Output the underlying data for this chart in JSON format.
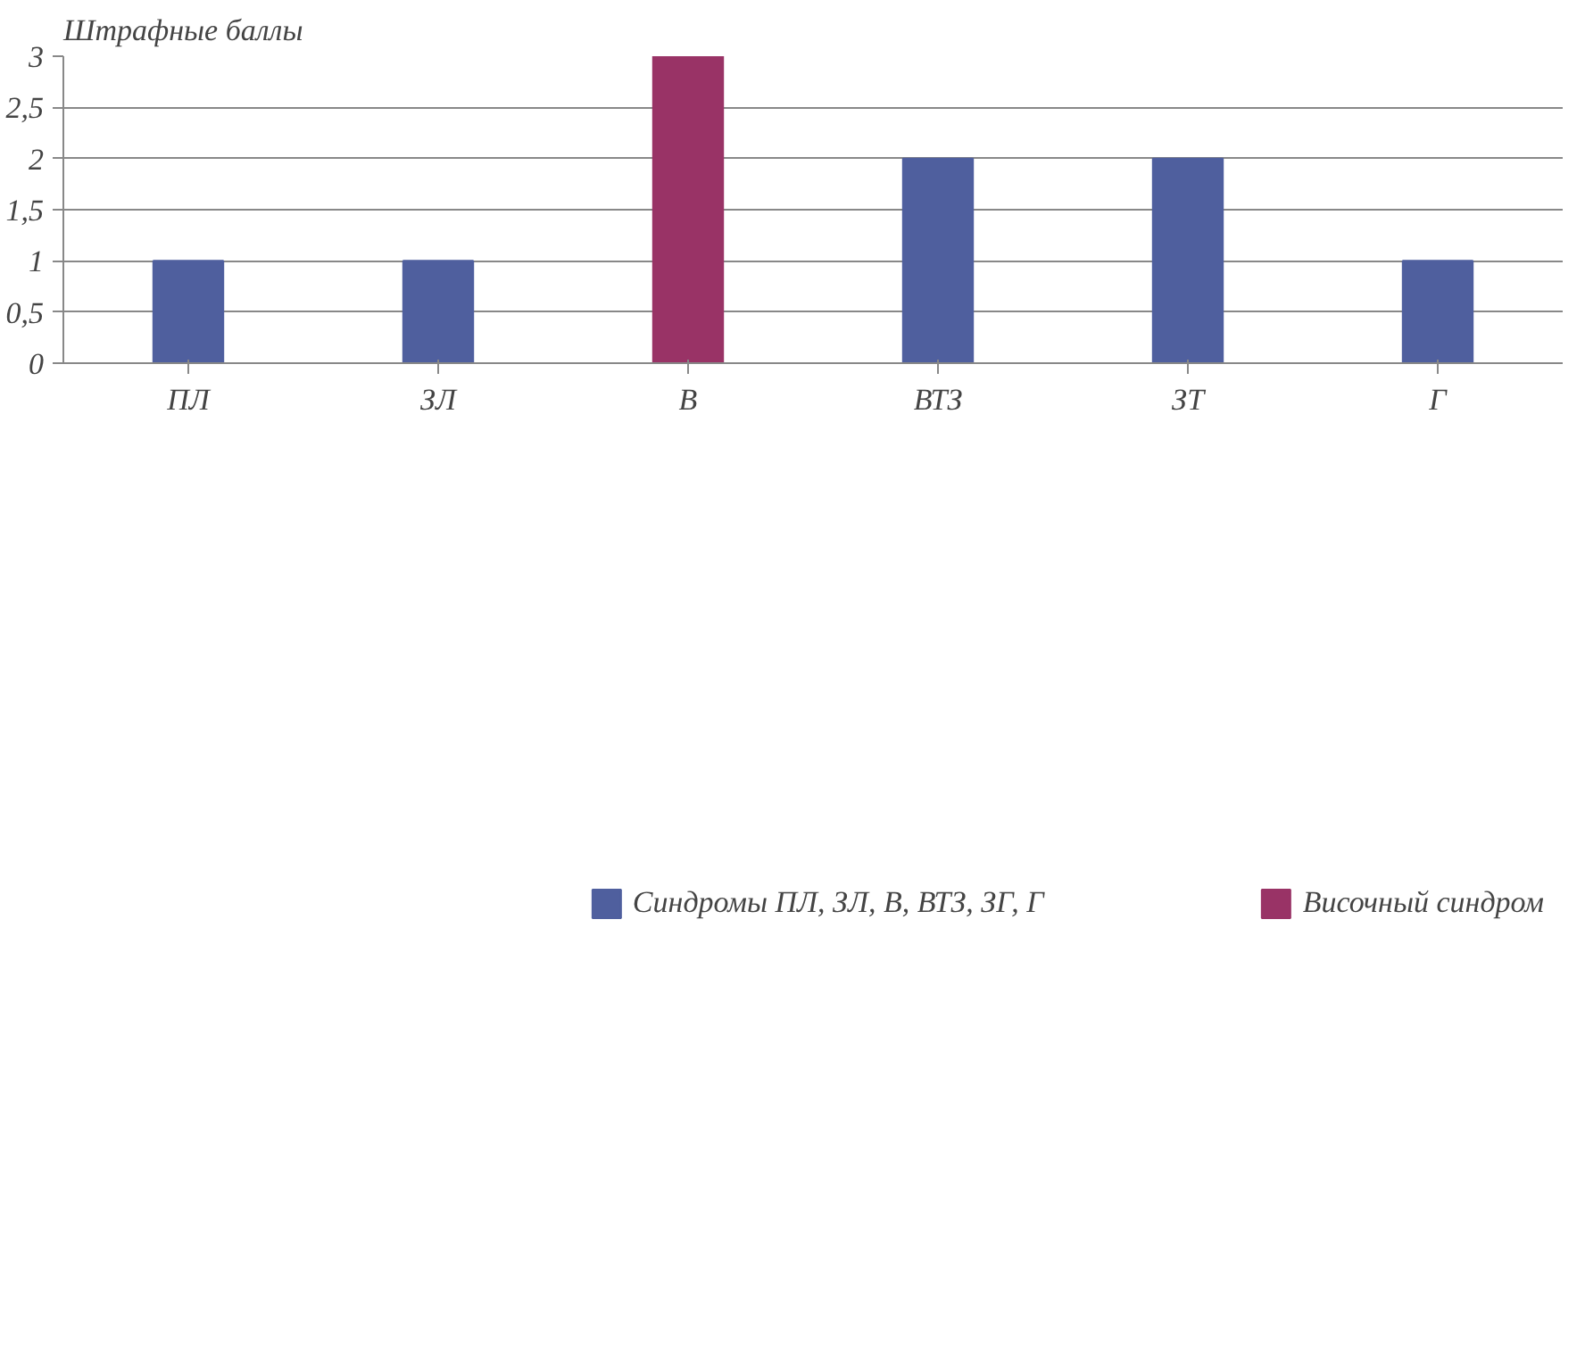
{
  "chart_data": {
    "type": "bar",
    "ylabel": "Штрафные баллы",
    "categories": [
      "ПЛ",
      "ЗЛ",
      "В",
      "ВТЗ",
      "ЗТ",
      "Г"
    ],
    "series": [
      {
        "name": "Синдромы ПЛ, ЗЛ, В, ВТЗ, ЗГ, Г",
        "color": "#4f5f9e",
        "values": [
          1,
          1,
          null,
          2,
          2,
          1
        ]
      },
      {
        "name": "Височный синдром",
        "color": "#993366",
        "values": [
          null,
          null,
          3,
          null,
          null,
          null
        ]
      }
    ],
    "ylim": [
      0,
      3
    ],
    "yticks": [
      0,
      {
        "value": 0.5,
        "label": "0,5"
      },
      1,
      {
        "value": 1.5,
        "label": "1,5"
      },
      2,
      {
        "value": 2.5,
        "label": "2,5"
      },
      3
    ],
    "grid": "y",
    "legend": "bottom"
  }
}
